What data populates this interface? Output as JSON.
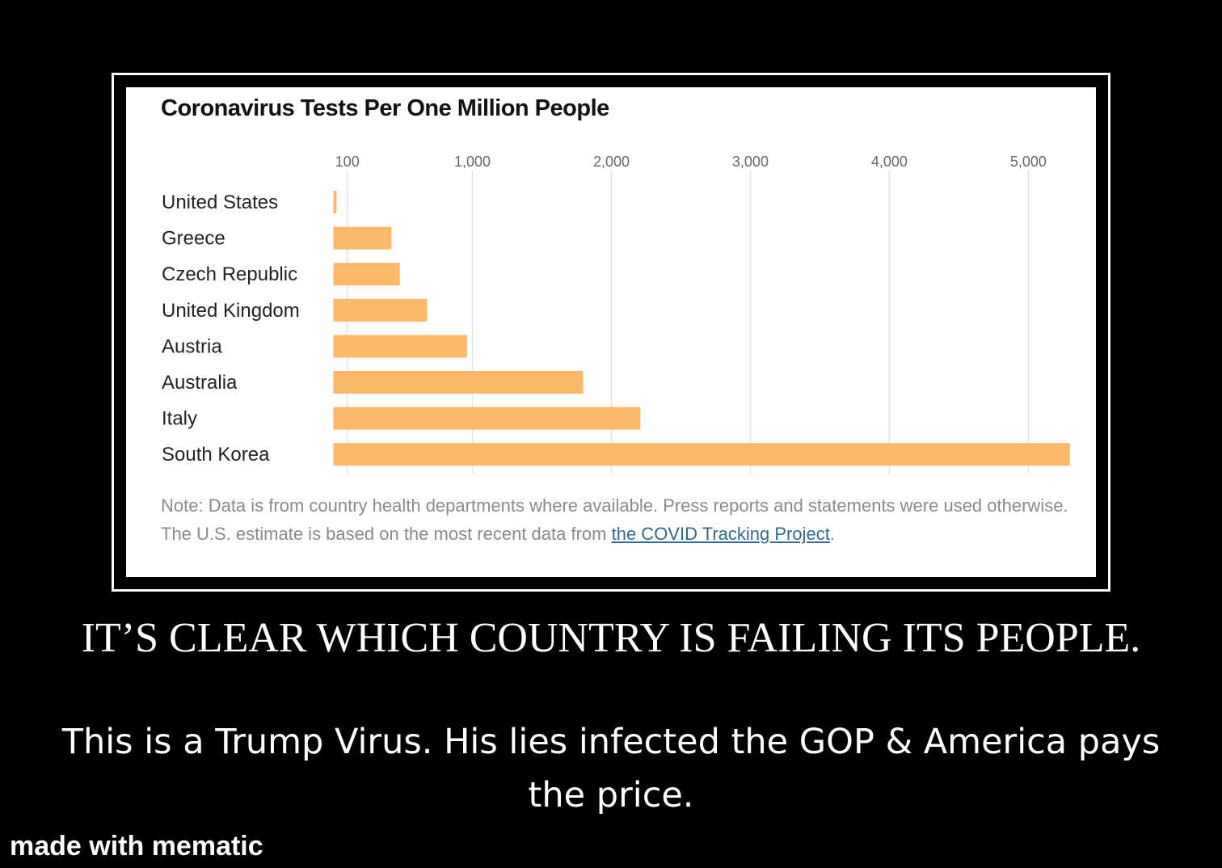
{
  "chart_data": {
    "type": "bar",
    "orientation": "horizontal",
    "title": "Coronavirus Tests Per One Million People",
    "categories": [
      "United States",
      "Greece",
      "Czech Republic",
      "United Kingdom",
      "Austria",
      "Australia",
      "Italy",
      "South Korea"
    ],
    "values": [
      23,
      418,
      478,
      675,
      962,
      1797,
      2209,
      5299
    ],
    "xticks": [
      {
        "value": 100,
        "label": "100"
      },
      {
        "value": 1000,
        "label": "1,000"
      },
      {
        "value": 2000,
        "label": "2,000"
      },
      {
        "value": 3000,
        "label": "3,000"
      },
      {
        "value": 4000,
        "label": "4,000"
      },
      {
        "value": 5000,
        "label": "5,000"
      }
    ],
    "xlim": [
      0,
      5300
    ],
    "grid": true,
    "bar_color": "#fdb96b",
    "xlabel": "",
    "ylabel": ""
  },
  "note": {
    "text": "Note: Data is from country health departments where available. Press reports and statements were used otherwise. The U.S. estimate is based on the most recent data from ",
    "link_text": "the COVID Tracking Project",
    "trailing": "."
  },
  "caption": {
    "line1": "IT’S CLEAR WHICH COUNTRY IS FAILING ITS PEOPLE.",
    "line2": "This is a Trump Virus. His lies infected the GOP & America pays the price."
  },
  "watermark": "made with mematic",
  "colors": {
    "background": "#000000",
    "panel": "#ffffff",
    "grid": "#e2e2e2",
    "tick_text": "#666666",
    "category_text": "#222222",
    "link": "#326891"
  }
}
